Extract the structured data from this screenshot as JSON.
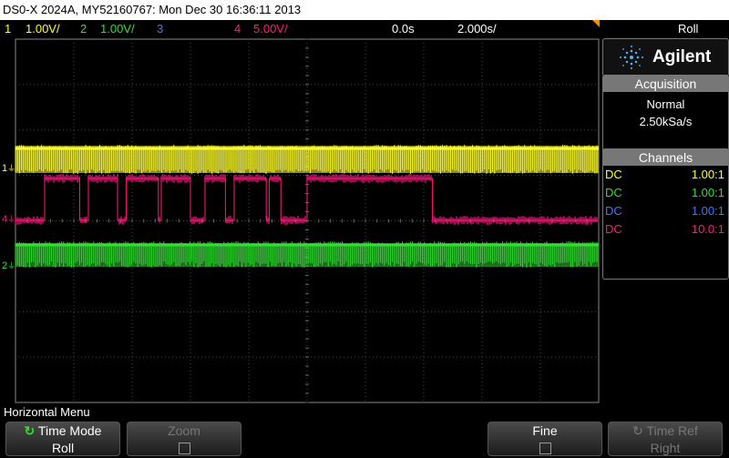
{
  "title": "DS0-X 2024A, MY52160767: Mon Dec 30 16:36:11 2013",
  "colors": {
    "ch1": "#ffff33",
    "ch2": "#33dd33",
    "ch3": "#4b72ff",
    "ch4": "#ff1a80"
  },
  "channel_bar": {
    "ch1_num": "1",
    "ch1_scale": "1.00V/",
    "ch2_num": "2",
    "ch2_scale": "1.00V/",
    "ch3_num": "3",
    "ch4_num": "4",
    "ch4_scale": "5.00V/",
    "delay": "0.0s",
    "timebase": "2.000s/",
    "mode": "Roll"
  },
  "markers": {
    "ch1": "1",
    "ch4": "4",
    "ch2": "2"
  },
  "sidebar": {
    "brand": "Agilent",
    "acquisition": {
      "header": "Acquisition",
      "mode": "Normal",
      "rate": "2.50kSa/s"
    },
    "channels": {
      "header": "Channels",
      "rows": [
        {
          "coupling": "DC",
          "probe": "1.00:1"
        },
        {
          "coupling": "DC",
          "probe": "1.00:1"
        },
        {
          "coupling": "DC",
          "probe": "1.00:1"
        },
        {
          "coupling": "DC",
          "probe": "10.0:1"
        }
      ]
    }
  },
  "menu": {
    "title": "Horizontal Menu",
    "softkeys": [
      {
        "label": "Time Mode",
        "value": "Roll"
      },
      {
        "label": "Zoom"
      },
      {
        "label": "Fine"
      },
      {
        "label": "Time Ref",
        "value": "Right"
      }
    ]
  },
  "waveforms": {
    "ch4_pulses": [
      [
        0.05,
        0.11
      ],
      [
        0.125,
        0.175
      ],
      [
        0.19,
        0.245
      ],
      [
        0.25,
        0.3
      ],
      [
        0.325,
        0.36
      ],
      [
        0.375,
        0.43
      ],
      [
        0.435,
        0.455
      ],
      [
        0.5,
        0.715
      ]
    ]
  }
}
